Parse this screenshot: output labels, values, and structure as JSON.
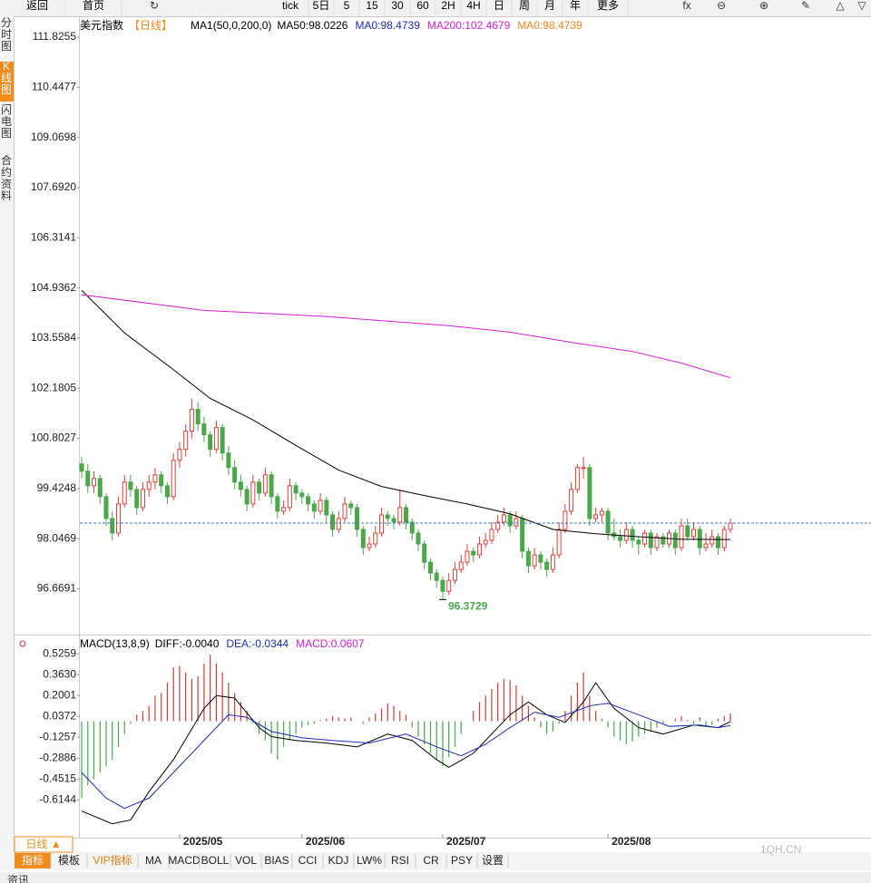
{
  "toolbar": [
    "返回",
    "首页",
    "tick",
    "5日",
    "5",
    "15",
    "30",
    "60",
    "2H",
    "4H",
    "日",
    "周",
    "月",
    "年",
    "更多"
  ],
  "sidebar": [
    "分时图",
    "K线图",
    "闪电图",
    "合约资料"
  ],
  "bottom": {
    "period": "日线 ▲",
    "tabs": [
      "指标",
      "模板",
      "VIP指标",
      "MA",
      "MACD",
      "BOLL",
      "VOL",
      "BIAS",
      "CCI",
      "KDJ",
      "LW%",
      "RSI",
      "CR",
      "PSY",
      "设置"
    ],
    "watermark": "1QH.CN",
    "news": "资讯"
  },
  "chart_data": [
    {
      "type": "candlestick",
      "title": "美元指数",
      "period": "【日线】",
      "indicator": "MA1(50,0,200,0)",
      "legends": [
        {
          "text": "MA50:98.0226",
          "color": "#000000"
        },
        {
          "text": "MA0:98.4739",
          "color": "#1c2fb8"
        },
        {
          "text": "MA200:102.4679",
          "color": "#d81ed8"
        },
        {
          "text": "MA0:98.4739",
          "color": "#f08c1e"
        }
      ],
      "up_color": "#d9423c",
      "down_color": "#4aa84a",
      "ylim": [
        95.41,
        112.35
      ],
      "yticks": [
        111.8255,
        110.4477,
        109.0698,
        {
          "value": 107.692,
          "label": "107.6920"
        },
        106.3141,
        104.9362,
        103.5584,
        102.1805,
        100.8027,
        99.4248,
        98.0469,
        96.6691
      ],
      "month_labels": [
        "2025/05",
        "2025/06",
        "2025/07",
        "2025/08"
      ],
      "month_starts": [
        16,
        36,
        59,
        86
      ],
      "low_annotation": 96.3729,
      "ohlc": [
        [
          100.1,
          100.3,
          99.7,
          99.9
        ],
        [
          99.9,
          100.1,
          99.3,
          99.5
        ],
        [
          99.5,
          99.9,
          99.3,
          99.7
        ],
        [
          99.7,
          99.8,
          99.0,
          99.2
        ],
        [
          99.2,
          99.3,
          98.4,
          98.6
        ],
        [
          98.6,
          98.8,
          98.0,
          98.2
        ],
        [
          98.2,
          99.2,
          98.1,
          99.0
        ],
        [
          99.0,
          99.8,
          98.9,
          99.6
        ],
        [
          99.6,
          99.8,
          99.2,
          99.4
        ],
        [
          99.4,
          99.5,
          98.7,
          98.9
        ],
        [
          98.9,
          99.6,
          98.8,
          99.4
        ],
        [
          99.4,
          99.8,
          99.2,
          99.6
        ],
        [
          99.6,
          100.0,
          99.4,
          99.8
        ],
        [
          99.8,
          99.9,
          99.3,
          99.5
        ],
        [
          99.5,
          99.6,
          99.0,
          99.2
        ],
        [
          99.2,
          100.4,
          99.1,
          100.2
        ],
        [
          100.2,
          100.7,
          100.0,
          100.5
        ],
        [
          100.5,
          101.2,
          100.3,
          101.0
        ],
        [
          101.0,
          101.9,
          100.8,
          101.6
        ],
        [
          101.6,
          101.8,
          101.0,
          101.2
        ],
        [
          101.2,
          101.4,
          100.7,
          100.9
        ],
        [
          100.9,
          101.0,
          100.3,
          100.5
        ],
        [
          100.5,
          101.3,
          100.4,
          101.1
        ],
        [
          101.1,
          101.2,
          100.2,
          100.4
        ],
        [
          100.4,
          100.6,
          99.8,
          100.0
        ],
        [
          100.0,
          100.2,
          99.4,
          99.6
        ],
        [
          99.6,
          99.8,
          99.2,
          99.4
        ],
        [
          99.4,
          99.5,
          98.8,
          99.0
        ],
        [
          99.0,
          99.8,
          98.9,
          99.6
        ],
        [
          99.6,
          99.7,
          99.1,
          99.3
        ],
        [
          99.3,
          100.0,
          99.2,
          99.8
        ],
        [
          99.8,
          99.9,
          99.0,
          99.2
        ],
        [
          99.2,
          99.3,
          98.6,
          98.8
        ],
        [
          98.8,
          99.1,
          98.7,
          98.9
        ],
        [
          98.9,
          99.7,
          98.8,
          99.5
        ],
        [
          99.5,
          99.6,
          99.1,
          99.3
        ],
        [
          99.3,
          99.4,
          99.0,
          99.2
        ],
        [
          99.2,
          99.3,
          98.8,
          99.0
        ],
        [
          99.0,
          99.1,
          98.6,
          98.8
        ],
        [
          98.8,
          99.3,
          98.7,
          99.1
        ],
        [
          99.1,
          99.2,
          98.5,
          98.7
        ],
        [
          98.7,
          98.8,
          98.1,
          98.3
        ],
        [
          98.3,
          98.8,
          98.2,
          98.6
        ],
        [
          98.6,
          99.2,
          98.5,
          99.0
        ],
        [
          99.0,
          99.1,
          98.7,
          98.9
        ],
        [
          98.9,
          99.0,
          98.1,
          98.3
        ],
        [
          98.3,
          98.4,
          97.6,
          97.8
        ],
        [
          97.8,
          98.1,
          97.7,
          97.9
        ],
        [
          97.9,
          98.4,
          97.8,
          98.2
        ],
        [
          98.2,
          98.9,
          98.1,
          98.7
        ],
        [
          98.7,
          98.8,
          98.4,
          98.6
        ],
        [
          98.6,
          98.7,
          98.3,
          98.5
        ],
        [
          98.5,
          99.4,
          98.4,
          98.9
        ],
        [
          98.9,
          99.0,
          98.3,
          98.5
        ],
        [
          98.5,
          98.6,
          98.0,
          98.2
        ],
        [
          98.2,
          98.3,
          97.7,
          97.9
        ],
        [
          97.9,
          98.0,
          97.2,
          97.4
        ],
        [
          97.4,
          97.5,
          96.9,
          97.1
        ],
        [
          97.1,
          97.2,
          96.7,
          96.9
        ],
        [
          96.9,
          97.0,
          96.3729,
          96.6
        ],
        [
          96.6,
          97.1,
          96.5,
          96.9
        ],
        [
          96.9,
          97.4,
          96.8,
          97.2
        ],
        [
          97.2,
          97.6,
          97.1,
          97.4
        ],
        [
          97.4,
          97.9,
          97.3,
          97.7
        ],
        [
          97.7,
          97.8,
          97.4,
          97.6
        ],
        [
          97.6,
          98.1,
          97.5,
          97.9
        ],
        [
          97.9,
          98.2,
          97.8,
          98.0
        ],
        [
          98.0,
          98.5,
          97.9,
          98.3
        ],
        [
          98.3,
          98.7,
          98.2,
          98.5
        ],
        [
          98.5,
          98.9,
          98.4,
          98.7
        ],
        [
          98.7,
          98.8,
          98.2,
          98.4
        ],
        [
          98.4,
          98.8,
          98.3,
          98.6
        ],
        [
          98.6,
          98.7,
          97.5,
          97.7
        ],
        [
          97.7,
          97.8,
          97.1,
          97.3
        ],
        [
          97.3,
          97.8,
          97.2,
          97.6
        ],
        [
          97.6,
          97.7,
          97.2,
          97.4
        ],
        [
          97.4,
          97.5,
          97.0,
          97.2
        ],
        [
          97.2,
          97.8,
          97.1,
          97.6
        ],
        [
          97.6,
          98.5,
          97.5,
          98.3
        ],
        [
          98.3,
          99.0,
          98.2,
          98.8
        ],
        [
          98.8,
          99.6,
          98.7,
          99.4
        ],
        [
          99.4,
          100.1,
          99.3,
          100.0
        ],
        [
          100.0,
          100.3,
          99.7,
          100.0
        ],
        [
          100.0,
          100.1,
          98.4,
          98.6
        ],
        [
          98.6,
          98.9,
          98.5,
          98.7
        ],
        [
          98.7,
          98.9,
          98.5,
          98.8
        ],
        [
          98.8,
          98.9,
          98.0,
          98.2
        ],
        [
          98.2,
          98.6,
          98.0,
          98.1
        ],
        [
          98.1,
          98.3,
          97.8,
          98.0
        ],
        [
          98.0,
          98.5,
          97.9,
          98.3
        ],
        [
          98.3,
          98.4,
          97.8,
          98.0
        ],
        [
          98.0,
          98.1,
          97.6,
          97.9
        ],
        [
          97.9,
          98.3,
          97.8,
          98.2
        ],
        [
          98.2,
          98.3,
          97.6,
          97.8
        ],
        [
          97.8,
          98.2,
          97.7,
          98.1
        ],
        [
          98.1,
          98.2,
          97.8,
          97.9
        ],
        [
          97.9,
          98.3,
          97.8,
          98.2
        ],
        [
          98.2,
          98.3,
          97.6,
          97.8
        ],
        [
          97.8,
          98.6,
          97.7,
          98.4
        ],
        [
          98.4,
          98.6,
          98.0,
          98.1
        ],
        [
          98.1,
          98.5,
          98.0,
          98.3
        ],
        [
          98.3,
          98.4,
          97.6,
          97.8
        ],
        [
          97.8,
          98.2,
          97.7,
          97.9
        ],
        [
          97.9,
          98.3,
          97.8,
          98.1
        ],
        [
          98.1,
          98.2,
          97.6,
          97.8
        ],
        [
          97.8,
          98.4,
          97.7,
          98.3
        ],
        [
          98.3,
          98.6,
          98.2,
          98.4739
        ]
      ],
      "series": [
        {
          "name": "MA50",
          "color": "#000000",
          "x": [
            0,
            7,
            15,
            21,
            28,
            35,
            42,
            49,
            56,
            63,
            70,
            77,
            84,
            91,
            98,
            106
          ],
          "values": [
            104.87,
            103.7,
            102.69,
            101.9,
            101.31,
            100.61,
            99.93,
            99.48,
            99.23,
            99.0,
            98.73,
            98.3,
            98.18,
            98.1,
            98.03,
            98.0226
          ]
        },
        {
          "name": "MA200",
          "color": "#d81ed8",
          "x": [
            0,
            20,
            40,
            60,
            70,
            80,
            90,
            98,
            106
          ],
          "values": [
            104.75,
            104.32,
            104.15,
            103.9,
            103.72,
            103.44,
            103.19,
            102.87,
            102.4679
          ]
        }
      ]
    },
    {
      "type": "macd",
      "title": "MACD(13,8,9)",
      "legends": [
        {
          "text": "DIFF:-0.0040",
          "color": "#000000"
        },
        {
          "text": "DEA:-0.0344",
          "color": "#1c2fb8"
        },
        {
          "text": "MACD:0.0607",
          "color": "#d81ed8"
        }
      ],
      "ylim": [
        -0.88,
        0.64
      ],
      "yticks": [
        0.5259,
        {
          "value": 0.363,
          "label": "0.3630"
        },
        0.2001,
        0.0372,
        -0.1257,
        -0.2886,
        -0.4515,
        -0.6144
      ],
      "up_color": "#c8403a",
      "down_color": "#4aa84a",
      "histogram": [
        -0.6,
        -0.5,
        -0.45,
        -0.4,
        -0.35,
        -0.3,
        -0.2,
        -0.1,
        -0.02,
        0.05,
        0.08,
        0.12,
        0.2,
        0.22,
        0.3,
        0.42,
        0.43,
        0.38,
        0.33,
        0.35,
        0.45,
        0.52,
        0.45,
        0.38,
        0.3,
        0.22,
        0.15,
        0.08,
        -0.02,
        -0.1,
        -0.15,
        -0.25,
        -0.3,
        -0.2,
        -0.15,
        -0.1,
        -0.05,
        -0.03,
        -0.02,
        0.01,
        0.02,
        0.04,
        0.03,
        0.02,
        0.03,
        0.0,
        -0.02,
        0.03,
        0.06,
        0.1,
        0.14,
        0.12,
        0.08,
        0.05,
        -0.05,
        -0.12,
        -0.18,
        -0.25,
        -0.3,
        -0.35,
        -0.28,
        -0.2,
        -0.1,
        0.0,
        0.08,
        0.15,
        0.2,
        0.25,
        0.3,
        0.33,
        0.32,
        0.28,
        0.2,
        0.12,
        0.03,
        -0.05,
        -0.1,
        -0.08,
        -0.02,
        0.08,
        0.2,
        0.3,
        0.38,
        0.2,
        0.08,
        0.02,
        -0.05,
        -0.12,
        -0.15,
        -0.18,
        -0.16,
        -0.12,
        -0.1,
        -0.08,
        -0.05,
        -0.02,
        0.0,
        0.02,
        0.04,
        0.01,
        -0.02,
        0.03,
        -0.04,
        -0.03,
        0.02,
        0.04,
        0.0607
      ],
      "series": [
        {
          "name": "DIFF",
          "color": "#000000",
          "x": [
            0,
            5,
            8,
            11,
            15,
            20,
            22,
            25,
            29,
            31,
            35,
            40,
            45,
            50,
            54,
            58,
            60,
            64,
            70,
            73,
            76,
            79,
            82,
            84,
            87,
            91,
            95,
            100,
            104,
            106
          ],
          "values": [
            -0.7,
            -0.8,
            -0.77,
            -0.55,
            -0.3,
            0.1,
            0.2,
            0.18,
            -0.05,
            -0.12,
            -0.15,
            -0.17,
            -0.2,
            -0.1,
            -0.15,
            -0.3,
            -0.36,
            -0.25,
            0.05,
            0.15,
            0.05,
            -0.01,
            0.15,
            0.3,
            0.1,
            -0.05,
            -0.1,
            -0.03,
            -0.05,
            -0.004
          ]
        },
        {
          "name": "DEA",
          "color": "#1c2fb8",
          "x": [
            0,
            4,
            7,
            11,
            15,
            20,
            24,
            27,
            31,
            36,
            41,
            47,
            53,
            58,
            62,
            66,
            70,
            74,
            78,
            83,
            86,
            91,
            96,
            101,
            104,
            106
          ],
          "values": [
            -0.4,
            -0.6,
            -0.68,
            -0.6,
            -0.4,
            -0.15,
            0.05,
            0.03,
            -0.08,
            -0.13,
            -0.15,
            -0.17,
            -0.1,
            -0.2,
            -0.27,
            -0.18,
            -0.05,
            0.07,
            0.03,
            0.12,
            0.14,
            0.05,
            -0.04,
            -0.03,
            -0.05,
            -0.0344
          ]
        }
      ]
    }
  ]
}
